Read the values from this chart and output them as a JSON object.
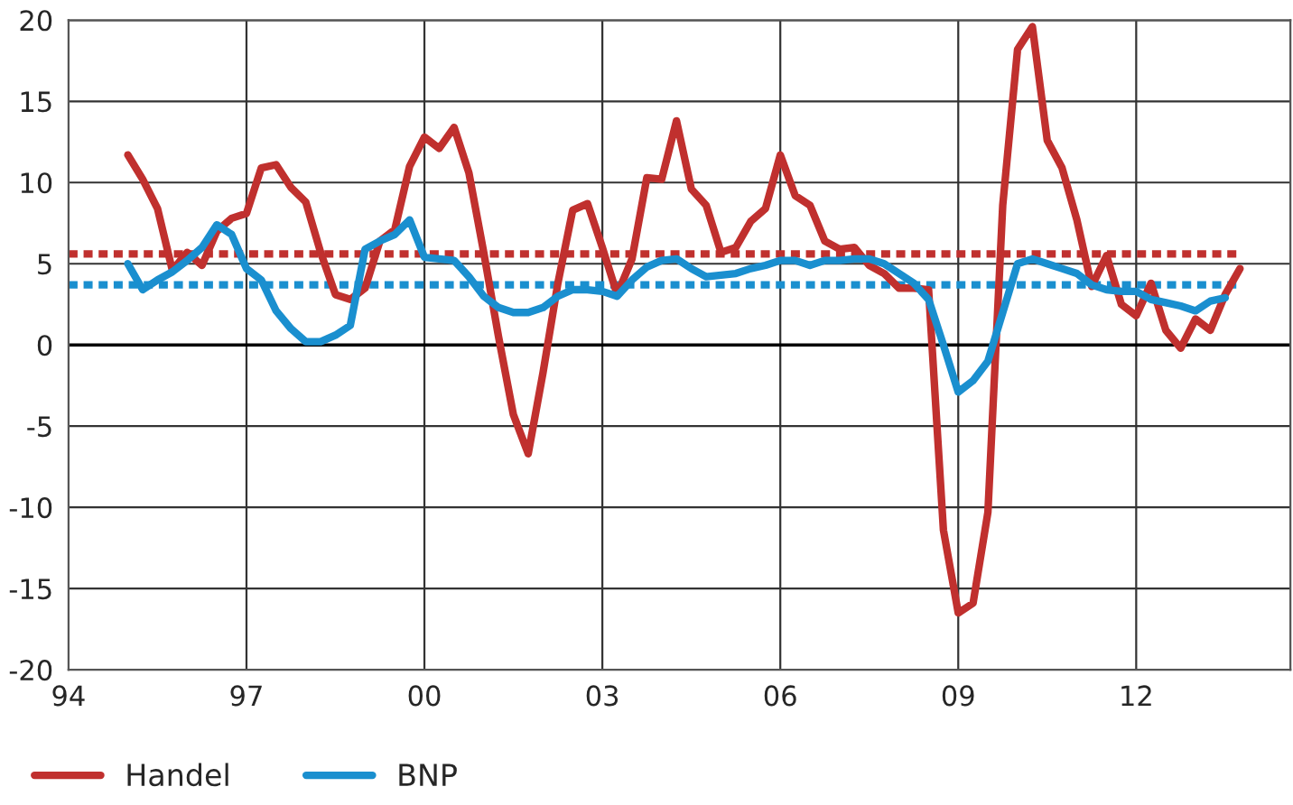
{
  "chart_data": {
    "type": "line",
    "xlim": [
      1994,
      2014.6
    ],
    "xticks": [
      {
        "value": 1994,
        "label": "94"
      },
      {
        "value": 1997,
        "label": "97"
      },
      {
        "value": 2000,
        "label": "00"
      },
      {
        "value": 2003,
        "label": "03"
      },
      {
        "value": 2006,
        "label": "06"
      },
      {
        "value": 2009,
        "label": "09"
      },
      {
        "value": 2012,
        "label": "12"
      }
    ],
    "ylim": [
      -20,
      20
    ],
    "yticks": [
      -20,
      -15,
      -10,
      -5,
      0,
      5,
      10,
      15,
      20
    ],
    "grid": true,
    "legend": "bottom left",
    "marker": "none",
    "line_style": "solid",
    "series": [
      {
        "name": "Handel",
        "color": "#c0302e",
        "x": [
          1995.0,
          1995.25,
          1995.5,
          1995.75,
          1996.0,
          1996.25,
          1996.5,
          1996.75,
          1997.0,
          1997.25,
          1997.5,
          1997.75,
          1998.0,
          1998.25,
          1998.5,
          1998.75,
          1999.0,
          1999.25,
          1999.5,
          1999.75,
          2000.0,
          2000.25,
          2000.5,
          2000.75,
          2001.0,
          2001.25,
          2001.5,
          2001.75,
          2002.0,
          2002.25,
          2002.5,
          2002.75,
          2003.0,
          2003.25,
          2003.5,
          2003.75,
          2004.0,
          2004.25,
          2004.5,
          2004.75,
          2005.0,
          2005.25,
          2005.5,
          2005.75,
          2006.0,
          2006.25,
          2006.5,
          2006.75,
          2007.0,
          2007.25,
          2007.5,
          2007.75,
          2008.0,
          2008.25,
          2008.5,
          2008.75,
          2009.0,
          2009.25,
          2009.5,
          2009.75,
          2010.0,
          2010.25,
          2010.5,
          2010.75,
          2011.0,
          2011.25,
          2011.5,
          2011.75,
          2012.0,
          2012.25,
          2012.5,
          2012.75,
          2013.0,
          2013.25,
          2013.5,
          2013.75
        ],
        "values": [
          11.7,
          10.2,
          8.4,
          4.6,
          5.7,
          4.9,
          7.0,
          7.8,
          8.1,
          10.9,
          11.1,
          9.7,
          8.8,
          5.7,
          3.1,
          2.8,
          3.5,
          6.4,
          7.1,
          11.0,
          12.8,
          12.1,
          13.4,
          10.6,
          5.7,
          0.5,
          -4.3,
          -6.7,
          -1.7,
          3.8,
          8.3,
          8.7,
          6.0,
          3.1,
          5.3,
          10.3,
          10.2,
          13.8,
          9.6,
          8.6,
          5.7,
          6.0,
          7.6,
          8.4,
          11.7,
          9.2,
          8.6,
          6.4,
          5.9,
          6.0,
          4.9,
          4.4,
          3.5,
          3.5,
          3.4,
          -11.4,
          -16.5,
          -15.9,
          -10.3,
          8.6,
          18.2,
          19.6,
          12.6,
          10.9,
          7.7,
          3.6,
          5.5,
          2.5,
          1.8,
          3.8,
          0.9,
          -0.2,
          1.6,
          0.9,
          3.1,
          4.7
        ]
      },
      {
        "name": "BNP",
        "color": "#1a8fcf",
        "x": [
          1995.0,
          1995.25,
          1995.5,
          1995.75,
          1996.0,
          1996.25,
          1996.5,
          1996.75,
          1997.0,
          1997.25,
          1997.5,
          1997.75,
          1998.0,
          1998.25,
          1998.5,
          1998.75,
          1999.0,
          1999.25,
          1999.5,
          1999.75,
          2000.0,
          2000.25,
          2000.5,
          2000.75,
          2001.0,
          2001.25,
          2001.5,
          2001.75,
          2002.0,
          2002.25,
          2002.5,
          2002.75,
          2003.0,
          2003.25,
          2003.5,
          2003.75,
          2004.0,
          2004.25,
          2004.5,
          2004.75,
          2005.0,
          2005.25,
          2005.5,
          2005.75,
          2006.0,
          2006.25,
          2006.5,
          2006.75,
          2007.0,
          2007.25,
          2007.5,
          2007.75,
          2008.0,
          2008.25,
          2008.5,
          2008.75,
          2009.0,
          2009.25,
          2009.5,
          2009.75,
          2010.0,
          2010.25,
          2010.5,
          2010.75,
          2011.0,
          2011.25,
          2011.5,
          2011.75,
          2012.0,
          2012.25,
          2012.5,
          2012.75,
          2013.0,
          2013.25,
          2013.5
        ],
        "values": [
          5.0,
          3.4,
          4.0,
          4.5,
          5.2,
          6.0,
          7.4,
          6.8,
          4.7,
          4.0,
          2.1,
          1.0,
          0.2,
          0.2,
          0.6,
          1.2,
          5.9,
          6.4,
          6.8,
          7.7,
          5.4,
          5.3,
          5.2,
          4.2,
          3.0,
          2.3,
          2.0,
          2.0,
          2.3,
          3.0,
          3.4,
          3.4,
          3.3,
          3.0,
          4.0,
          4.8,
          5.2,
          5.3,
          4.7,
          4.2,
          4.3,
          4.4,
          4.7,
          4.9,
          5.2,
          5.2,
          4.9,
          5.2,
          5.2,
          5.3,
          5.3,
          5.0,
          4.4,
          3.8,
          2.8,
          0.0,
          -2.9,
          -2.2,
          -1.0,
          2.0,
          5.0,
          5.3,
          5.0,
          4.7,
          4.4,
          3.7,
          3.4,
          3.3,
          3.3,
          2.8,
          2.6,
          2.4,
          2.1,
          2.7,
          2.9
        ]
      }
    ],
    "ref_lines": [
      {
        "axis": "y",
        "value": 5.6,
        "color": "#c0302e",
        "line_style": "dotted"
      },
      {
        "axis": "y",
        "value": 3.7,
        "color": "#1a8fcf",
        "line_style": "dotted"
      }
    ]
  }
}
